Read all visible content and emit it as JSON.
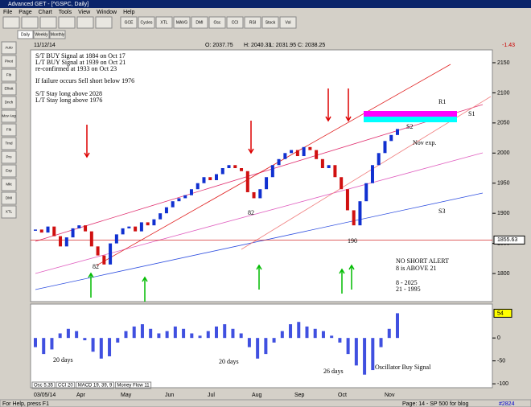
{
  "window_title": "Advanced GET - [^GSPC, Daily]",
  "menu": [
    "File",
    "Page",
    "Chart",
    "Tools",
    "View",
    "Window",
    "Help"
  ],
  "toolbar": [
    "GCE",
    "Cycles",
    "XTL",
    "MAVG",
    "DMI",
    "Osc",
    "CCI",
    "RSI",
    "Stock",
    "Vol"
  ],
  "period_tabs": [
    "Daily",
    "Weekly",
    "Monthly"
  ],
  "side_tools": [
    "Auto",
    "Pivot",
    "Fib",
    "Elliott",
    "Dnch",
    "Mov Avg",
    "Fib",
    "Trnd",
    "Pro",
    "Exp",
    "Mkt",
    "DMI",
    "XTL"
  ],
  "header": {
    "date": "11/12/14",
    "open": "O: 2037.75",
    "high": "H: 2040.33",
    "low": "L: 2031.95",
    "close": "C: 2038.25",
    "change": "-1.43"
  },
  "annotations": [
    "S/T BUY Signal at 1884 on Oct 17",
    "L/T BUY Signal at 1939 on Oct 21",
    "re-confirmed at 1933 on Oct 23",
    "If failure occurs Sell short below 1976",
    "S/T Stay long above 2028",
    "L/T Stay long above 1976",
    "R1",
    "S1",
    "S2",
    "S3",
    "Nov exp.",
    "82",
    "82",
    "190",
    "NO SHORT ALERT",
    "8 is ABOVE 21",
    "8   - 2025",
    "21  - 1995",
    "20 days",
    "20 days",
    "26 days",
    "Oscillator Buy Signal"
  ],
  "chart_data": [
    {
      "type": "bar",
      "values": [
        1873,
        1868,
        1878,
        1862,
        1845,
        1860,
        1875,
        1880,
        1870,
        1845,
        1830,
        1815,
        1850,
        1865,
        1875,
        1878,
        1870,
        1885,
        1880,
        1890,
        1900,
        1910,
        1920,
        1925,
        1930,
        1940,
        1950,
        1960,
        1955,
        1965,
        1975,
        1980,
        1975,
        1970,
        1935,
        1925,
        1940,
        1960,
        1980,
        1990,
        2000,
        2005,
        1995,
        2010,
        2005,
        1990,
        1975,
        1980,
        1960,
        1940,
        1905,
        1880,
        1920,
        1950,
        1980,
        2000,
        2020,
        2030,
        2040
      ],
      "ylim": [
        1760,
        2170
      ],
      "yticks": [
        1800,
        1850,
        1900,
        1950,
        2000,
        2050,
        2100,
        2150
      ],
      "marker_level": 1855.63
    },
    {
      "type": "bar",
      "values": [
        -20,
        -35,
        -25,
        10,
        20,
        15,
        -5,
        -30,
        -45,
        -40,
        -10,
        15,
        25,
        30,
        20,
        10,
        15,
        25,
        20,
        10,
        5,
        15,
        25,
        30,
        20,
        10,
        -20,
        -45,
        -35,
        -10,
        15,
        30,
        35,
        25,
        20,
        15,
        5,
        -10,
        -35,
        -60,
        -80,
        -70,
        -20,
        20,
        54
      ],
      "ylim": [
        -105,
        60
      ],
      "yticks": [
        0,
        -50,
        -100
      ]
    }
  ],
  "time_axis": {
    "start": "03/05/14",
    "months": [
      "Apr",
      "May",
      "Jun",
      "Jul",
      "Aug",
      "Sep",
      "Oct",
      "Nov"
    ]
  },
  "indicator_tabs": [
    "Osc 5,35",
    "CCI 20",
    "MACD 19, 39, 9",
    "Money Flow 11"
  ],
  "status": {
    "help": "For Help, press F1",
    "page": "Page: 14 - SP 500 for blog",
    "id": "#2824"
  }
}
